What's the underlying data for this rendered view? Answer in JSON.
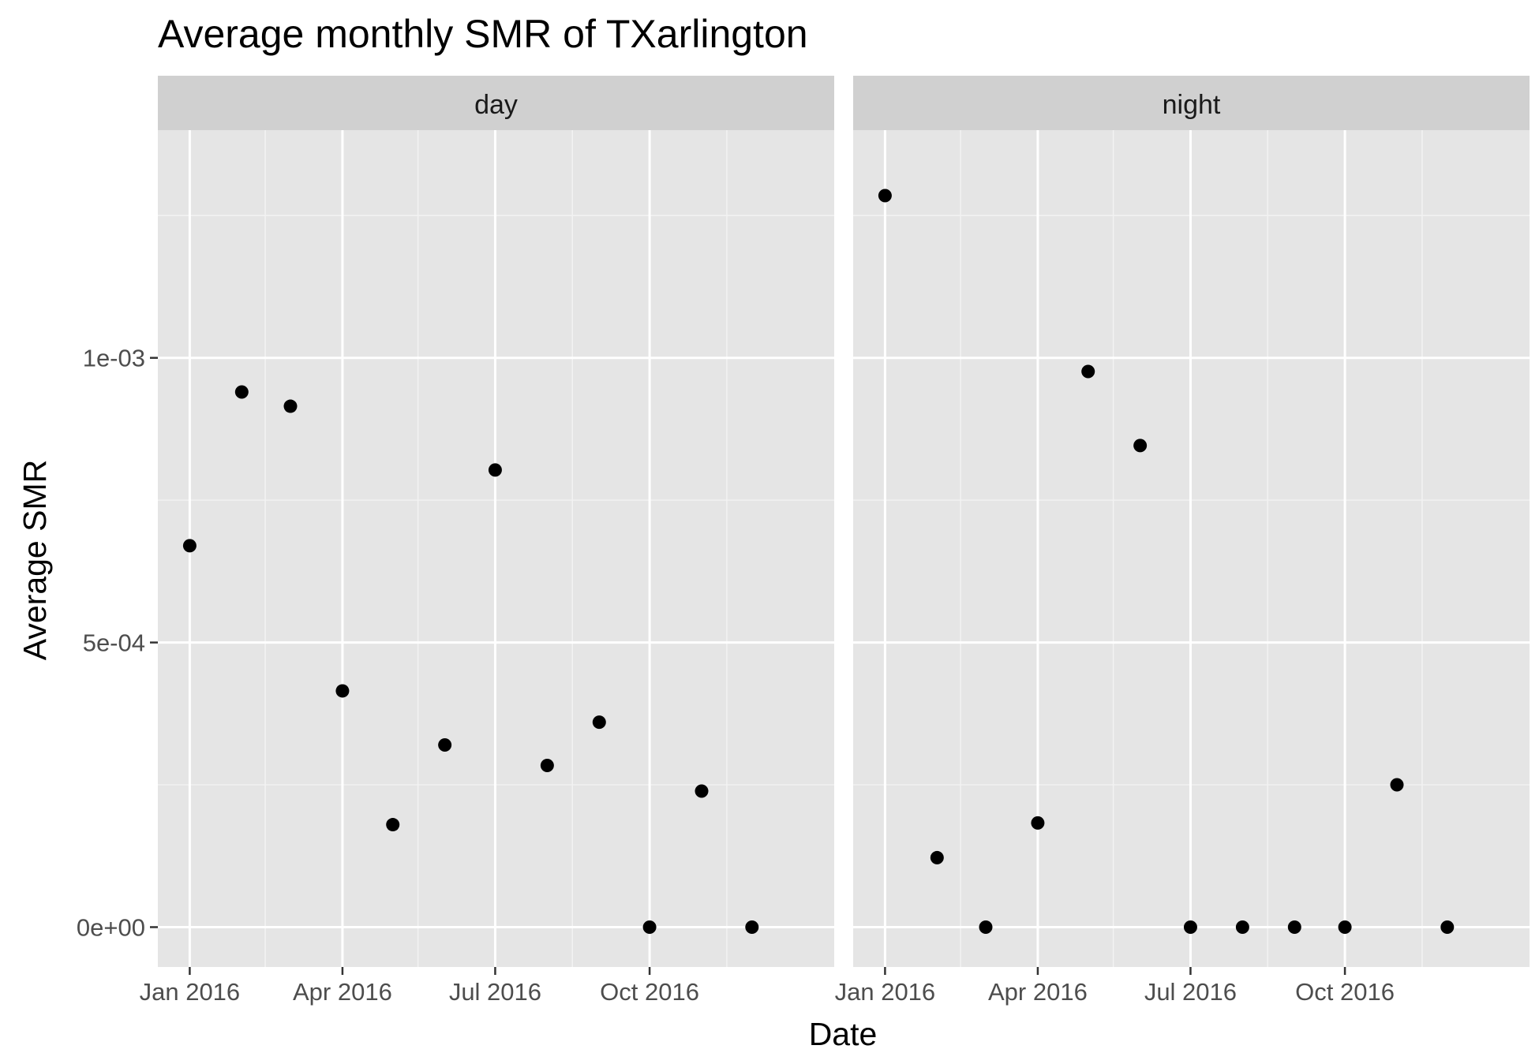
{
  "chart_data": {
    "type": "scatter",
    "title": "Average monthly SMR of TXarlington",
    "xlabel": "Date",
    "ylabel": "Average SMR",
    "x_ticks": [
      "Jan 2016",
      "Apr 2016",
      "Jul 2016",
      "Oct 2016"
    ],
    "y_ticks": [
      "0e+00",
      "5e-04",
      "1e-03"
    ],
    "y_tick_values": [
      0,
      0.0005,
      0.001
    ],
    "ylim": [
      -7e-05,
      0.0014
    ],
    "xlim": [
      "2015-12-13",
      "2017-01-19"
    ],
    "grid": true,
    "point_color": "#000000",
    "panel_background": "#e5e5e5",
    "strip_background": "#d0d0d0",
    "panels": [
      {
        "label": "day",
        "points": [
          {
            "x": "2016-01-01",
            "y": 0.00067
          },
          {
            "x": "2016-02-01",
            "y": 0.00094
          },
          {
            "x": "2016-03-01",
            "y": 0.000915
          },
          {
            "x": "2016-04-01",
            "y": 0.000415
          },
          {
            "x": "2016-05-01",
            "y": 0.00018
          },
          {
            "x": "2016-06-01",
            "y": 0.00032
          },
          {
            "x": "2016-07-01",
            "y": 0.000803
          },
          {
            "x": "2016-08-01",
            "y": 0.000284
          },
          {
            "x": "2016-09-01",
            "y": 0.00036
          },
          {
            "x": "2016-10-01",
            "y": 0.0
          },
          {
            "x": "2016-11-01",
            "y": 0.000239
          },
          {
            "x": "2016-12-01",
            "y": 0.0
          }
        ]
      },
      {
        "label": "night",
        "points": [
          {
            "x": "2016-01-01",
            "y": 0.001285
          },
          {
            "x": "2016-02-01",
            "y": 0.000122
          },
          {
            "x": "2016-03-01",
            "y": 0.0
          },
          {
            "x": "2016-04-01",
            "y": 0.000183
          },
          {
            "x": "2016-05-01",
            "y": 0.000976
          },
          {
            "x": "2016-06-01",
            "y": 0.000846
          },
          {
            "x": "2016-07-01",
            "y": 0.0
          },
          {
            "x": "2016-08-01",
            "y": 0.0
          },
          {
            "x": "2016-09-01",
            "y": 0.0
          },
          {
            "x": "2016-10-01",
            "y": 0.0
          },
          {
            "x": "2016-11-01",
            "y": 0.00025
          },
          {
            "x": "2016-12-01",
            "y": 0.0
          }
        ]
      }
    ]
  }
}
